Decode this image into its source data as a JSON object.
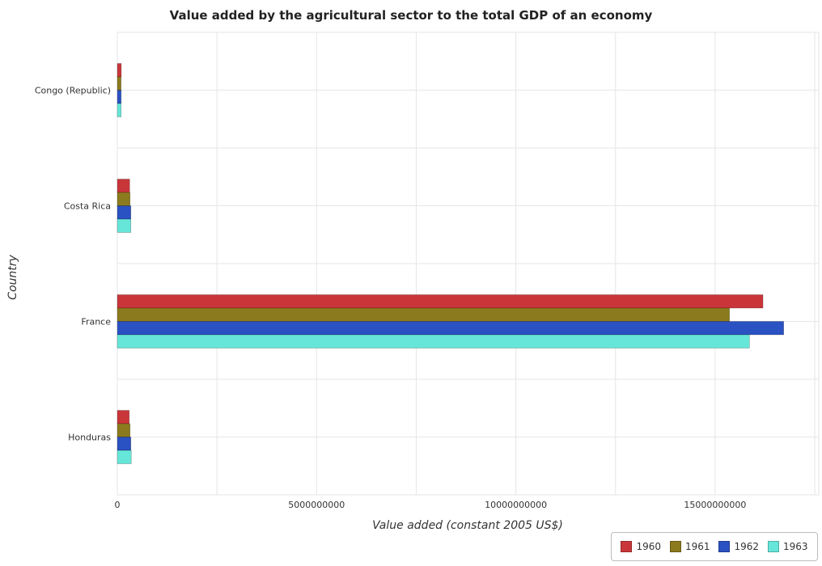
{
  "title": "Value added by the agricultural sector to the total GDP of an economy",
  "chart_data": {
    "type": "bar",
    "orientation": "horizontal",
    "title": "Value added by the agricultural sector to the total GDP of an economy",
    "xlabel": "Value added (constant 2005 US$)",
    "ylabel": "Country",
    "categories": [
      "Congo (Republic)",
      "Costa Rica",
      "France",
      "Honduras"
    ],
    "series": [
      {
        "name": "1960",
        "color": "#c9363a",
        "values": [
          100000000.0,
          310000000.0,
          16200000000.0,
          300000000.0
        ]
      },
      {
        "name": "1961",
        "color": "#8b7a1e",
        "values": [
          95000000.0,
          320000000.0,
          15360000000.0,
          320000000.0
        ]
      },
      {
        "name": "1962",
        "color": "#2b52c2",
        "values": [
          97000000.0,
          340000000.0,
          16720000000.0,
          340000000.0
        ]
      },
      {
        "name": "1963",
        "color": "#66e6d8",
        "values": [
          96000000.0,
          340000000.0,
          15860000000.0,
          350000000.0
        ]
      }
    ],
    "xlim": [
      0,
      17600000000
    ],
    "xticks": [
      0,
      5000000000,
      10000000000,
      15000000000
    ],
    "xtick_labels": [
      "0",
      "5000000000",
      "10000000000",
      "15000000000"
    ],
    "grid": true,
    "legend_position": "bottom-right"
  }
}
